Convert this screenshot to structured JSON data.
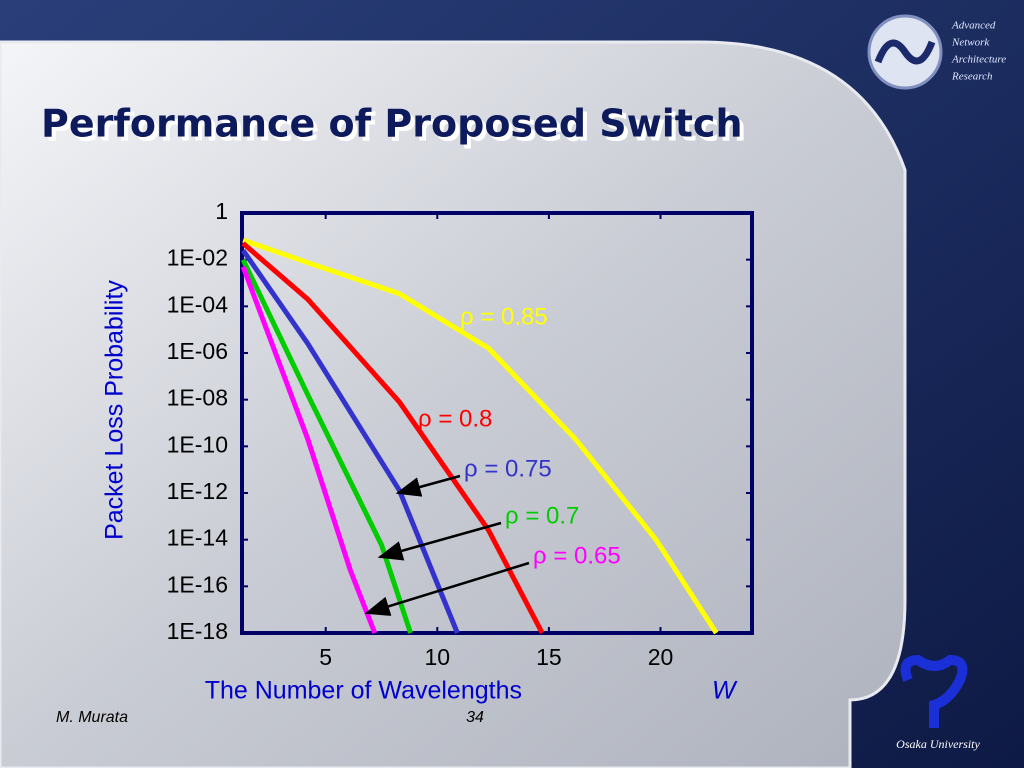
{
  "chart_data": {
    "type": "line",
    "title": "Performance of Proposed Switch",
    "xlabel": "The Number of Wavelengths",
    "xlabel_variable": "W",
    "ylabel": "Packet Loss Probability",
    "xlim": [
      1.25,
      24.1
    ],
    "xticks": [
      5,
      10,
      15,
      20
    ],
    "ylim": [
      1e-18,
      1
    ],
    "yscale": "log",
    "yticks": [
      1,
      {
        "value": 0.01,
        "label": "1E-02"
      },
      {
        "value": 0.0001,
        "label": "1E-04"
      },
      {
        "value": 1e-06,
        "label": "1E-06"
      },
      {
        "value": 1e-08,
        "label": "1E-08"
      },
      {
        "value": 1e-10,
        "label": "1E-10"
      },
      {
        "value": 1e-12,
        "label": "1E-12"
      },
      {
        "value": 1e-14,
        "label": "1E-14"
      },
      {
        "value": 1e-16,
        "label": "1E-16"
      },
      {
        "value": 1e-18,
        "label": "1E-18"
      }
    ],
    "series": [
      {
        "name": "ρ = 0.85",
        "color": "#ffff00",
        "x": [
          1.3,
          4.3,
          8.3,
          12.3,
          16.2,
          19.8,
          22.5
        ],
        "values": [
          0.069,
          0.0069,
          0.00035,
          1.6e-06,
          2e-10,
          1e-14,
          1e-18
        ]
      },
      {
        "name": "ρ = 0.8",
        "color": "#ff0000",
        "x": [
          1.3,
          4.2,
          8.3,
          12.3,
          14.7
        ],
        "values": [
          0.05,
          0.0002,
          8e-09,
          2.5e-14,
          1e-18
        ]
      },
      {
        "name": "ρ = 0.75",
        "color": "#3333cc",
        "x": [
          1.3,
          4.2,
          8.3,
          10.9
        ],
        "values": [
          0.025,
          2.5e-06,
          1.3e-12,
          1e-18
        ]
      },
      {
        "name": "ρ = 0.7",
        "color": "#00cc00",
        "x": [
          1.3,
          4.2,
          7.5,
          8.8
        ],
        "values": [
          0.01,
          1.6e-08,
          6e-15,
          1e-18
        ]
      },
      {
        "name": "ρ = 0.65",
        "color": "#ff00ff",
        "x": [
          1.3,
          4.2,
          6.1,
          7.2
        ],
        "values": [
          0.005,
          2e-10,
          5e-16,
          1e-18
        ]
      }
    ]
  },
  "slide": {
    "logo_lines": [
      "Advanced",
      "Network",
      "Architecture",
      "Research"
    ],
    "university": "Osaka University",
    "author": "M. Murata",
    "page": "34"
  }
}
